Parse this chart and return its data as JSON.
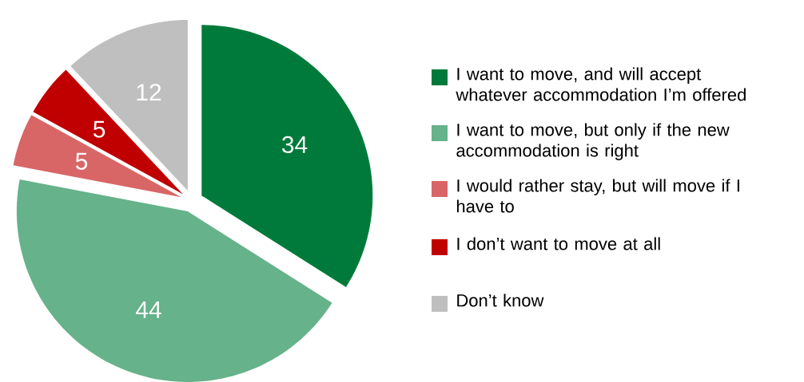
{
  "chart_data": {
    "type": "pie",
    "categories": [
      "I want to move, and will accept whatever accommodation I’m offered",
      "I want to move, but only if the new accommodation is right",
      "I would rather stay, but will move if I have to",
      "I don’t want to move at all",
      "Don’t know"
    ],
    "values": [
      34,
      44,
      5,
      5,
      12
    ],
    "colors": [
      "#007a3a",
      "#66b28a",
      "#d96666",
      "#c00000",
      "#bfbfbf"
    ],
    "data_labels": true,
    "legend": "right"
  }
}
